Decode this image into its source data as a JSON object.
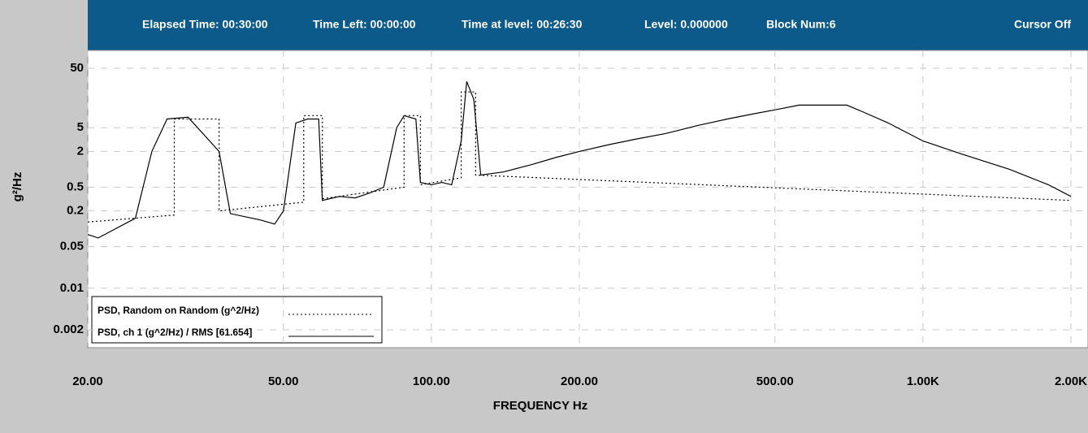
{
  "status_bar": [
    "Elapsed Time: 00:30:00",
    "Time Left: 00:00:00",
    "Time at level: 00:26:30",
    "Level: 0.000000",
    "Block Num:6",
    "Cursor Off"
  ],
  "chart_data": {
    "type": "line",
    "xlabel": "FREQUENCY Hz",
    "ylabel": "g²/Hz",
    "xscale": "log",
    "yscale": "log",
    "grid": true,
    "legend": "lower left",
    "xlim": [
      20,
      2000
    ],
    "ylim": [
      0.001,
      100
    ],
    "xticks": [
      {
        "value": 20,
        "label": "20.00"
      },
      {
        "value": 50,
        "label": "50.00"
      },
      {
        "value": 100,
        "label": "100.00"
      },
      {
        "value": 200,
        "label": "200.00"
      },
      {
        "value": 500,
        "label": "500.00"
      },
      {
        "value": 1000,
        "label": "1.00K"
      },
      {
        "value": 2000,
        "label": "2.00K"
      }
    ],
    "yticks": [
      50,
      5,
      2,
      0.5,
      0.2,
      0.05,
      0.01,
      0.002
    ],
    "series": [
      {
        "name": "PSD, Random on Random (g^2/Hz)",
        "color": "#000000",
        "dash": "2,3",
        "x": [
          20,
          30,
          30,
          37,
          37,
          55,
          55,
          60,
          60,
          88,
          88,
          95,
          95,
          115,
          115,
          123,
          123,
          2000
        ],
        "values": [
          0.13,
          0.17,
          7,
          7,
          0.2,
          0.28,
          8,
          8,
          0.32,
          0.5,
          8,
          8,
          0.55,
          0.72,
          20,
          20,
          0.8,
          0.3
        ]
      },
      {
        "name": "PSD, ch 1 (g^2/Hz) / RMS [61.654]",
        "color": "#000000",
        "dash": "none",
        "x": [
          20,
          21,
          25,
          27,
          29,
          32,
          37,
          39,
          45,
          48,
          50,
          53,
          56,
          59,
          60,
          65,
          70,
          75,
          80,
          85,
          88,
          93,
          95,
          100,
          105,
          110,
          115,
          118,
          122,
          126,
          140,
          160,
          180,
          200,
          230,
          260,
          300,
          350,
          400,
          450,
          500,
          560,
          620,
          700,
          760,
          850,
          1000,
          1200,
          1500,
          1800,
          2000
        ],
        "values": [
          0.08,
          0.07,
          0.15,
          2,
          7,
          7.5,
          2,
          0.18,
          0.14,
          0.12,
          0.2,
          6,
          7,
          7,
          0.3,
          0.35,
          0.33,
          0.4,
          0.5,
          5,
          8,
          7,
          0.6,
          0.55,
          0.6,
          0.55,
          3,
          30,
          15,
          0.8,
          0.9,
          1.2,
          1.6,
          2,
          2.6,
          3.2,
          4,
          5.5,
          7,
          8.5,
          10,
          12,
          12,
          12,
          9,
          6,
          3,
          1.8,
          1,
          0.55,
          0.35
        ]
      }
    ]
  }
}
